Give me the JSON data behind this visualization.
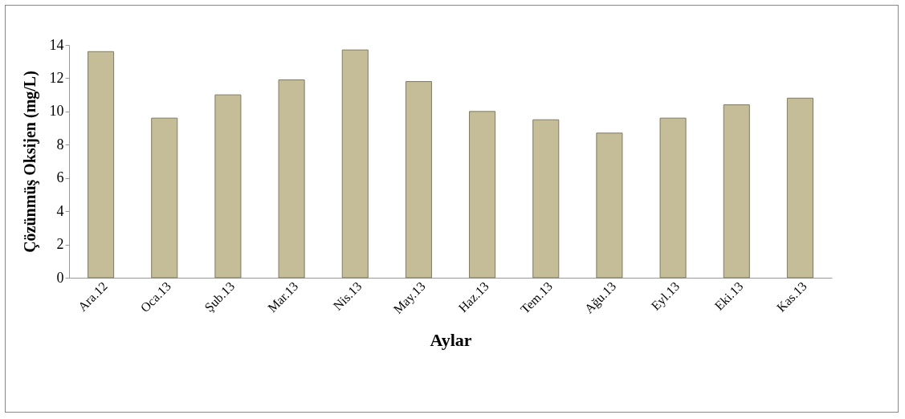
{
  "chart_data": {
    "type": "bar",
    "xlabel": "Aylar",
    "ylabel": "Çözünmüş Oksijen (mg/L)",
    "categories": [
      "Ara.12",
      "Oca.13",
      "Şub.13",
      "Mar.13",
      "Nis.13",
      "May.13",
      "Haz.13",
      "Tem.13",
      "Ağu.13",
      "Eyl.13",
      "Eki.13",
      "Kas.13"
    ],
    "values": [
      13.6,
      9.6,
      11.0,
      11.9,
      13.7,
      11.8,
      10.0,
      9.5,
      8.7,
      9.6,
      10.4,
      10.8
    ],
    "color": "#c4bd97",
    "ylim": [
      0,
      14
    ],
    "yticks": [
      0,
      2,
      4,
      6,
      8,
      10,
      12,
      14
    ],
    "grid": false
  }
}
